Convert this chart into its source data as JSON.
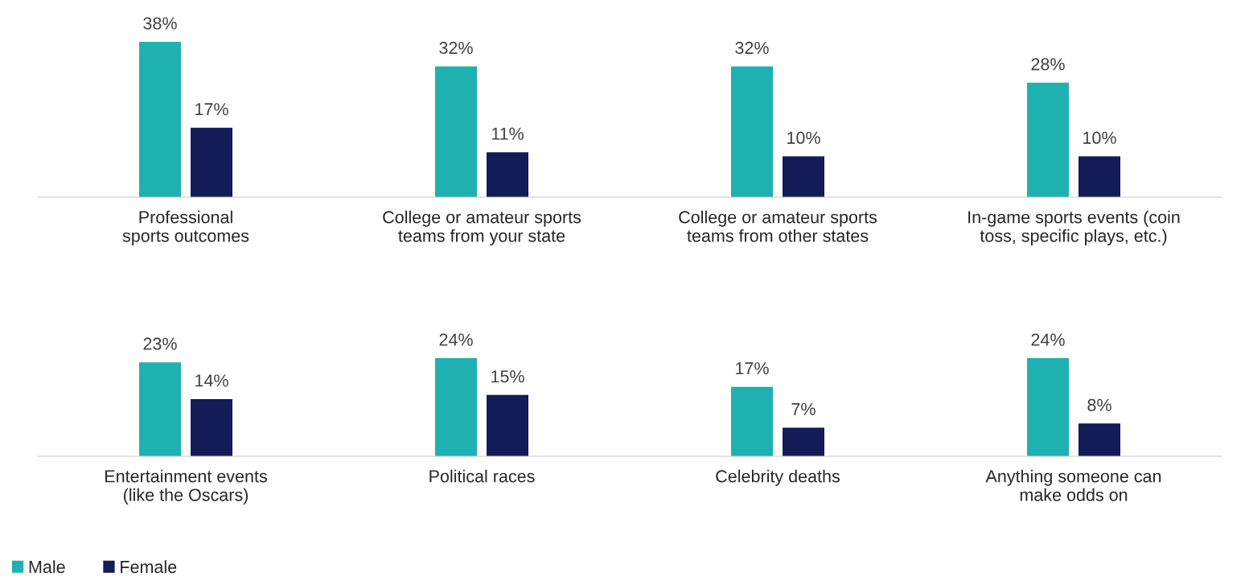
{
  "chart_data": [
    {
      "type": "bar",
      "categories": [
        "Professional\nsports outcomes",
        "College or amateur sports\nteams from your state",
        "College or amateur sports\nteams from other states",
        "In-game sports events (coin\ntoss, specific plays, etc.)"
      ],
      "series": [
        {
          "color": "#1fb1b0",
          "values": [
            38,
            32,
            32,
            28
          ],
          "value_labels": [
            "38%",
            "32%",
            "32%",
            "28%"
          ]
        },
        {
          "color": "#141c57",
          "values": [
            17,
            11,
            10,
            10
          ],
          "value_labels": [
            "17%",
            "11%",
            "10%",
            "10%"
          ]
        }
      ],
      "grid": false
    },
    {
      "type": "bar",
      "categories": [
        "Entertainment events\n(like the Oscars)",
        "Political races",
        "Celebrity deaths",
        "Anything someone can\nmake odds on"
      ],
      "series": [
        {
          "name": "Male",
          "color": "#1fb1b0",
          "values": [
            23,
            24,
            17,
            24
          ],
          "value_labels": [
            "23%",
            "24%",
            "17%",
            "24%"
          ]
        },
        {
          "name": "Female",
          "color": "#141c57",
          "values": [
            14,
            15,
            7,
            8
          ],
          "value_labels": [
            "14%",
            "15%",
            "7%",
            "8%"
          ]
        }
      ],
      "grid": false,
      "legend": "bottom left"
    }
  ]
}
